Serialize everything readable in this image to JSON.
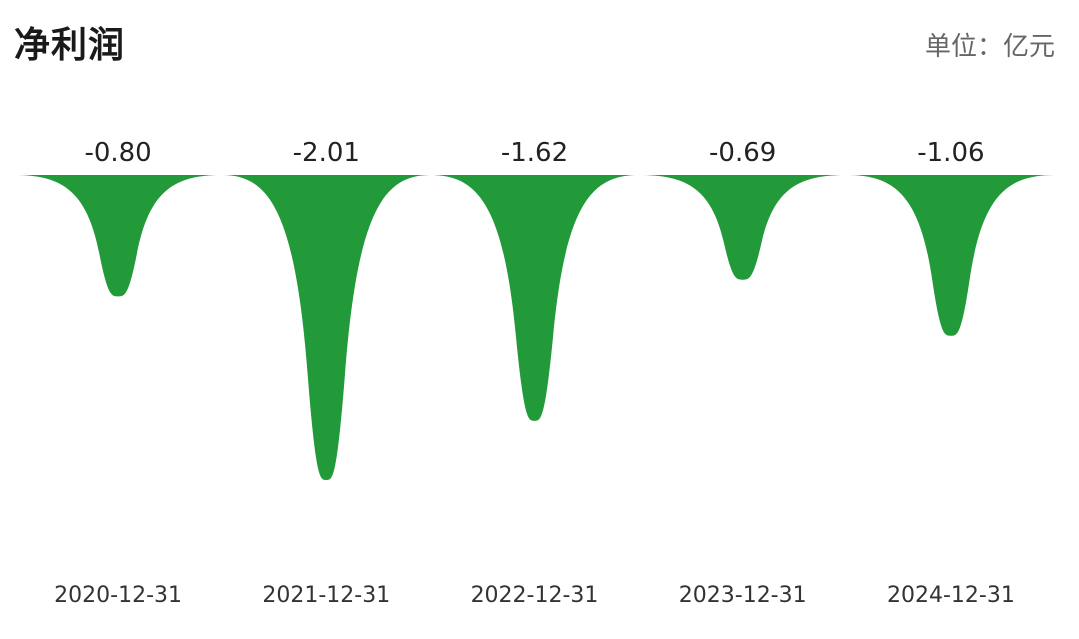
{
  "header": {
    "title": "净利润",
    "unit": "单位：亿元"
  },
  "colors": {
    "spike": "#229a3a",
    "value_label": "#222222",
    "tick_label": "#333333"
  },
  "chart_data": {
    "type": "area",
    "categories": [
      "2020-12-31",
      "2021-12-31",
      "2022-12-31",
      "2023-12-31",
      "2024-12-31"
    ],
    "values": [
      -0.8,
      -2.01,
      -1.62,
      -0.69,
      -1.06
    ],
    "value_labels": [
      "-0.80",
      "-2.01",
      "-1.62",
      "-0.69",
      "-1.06"
    ],
    "ylabel": "",
    "xlabel": "",
    "ylim": [
      -2.01,
      0
    ],
    "grid": false,
    "legend": "none"
  }
}
